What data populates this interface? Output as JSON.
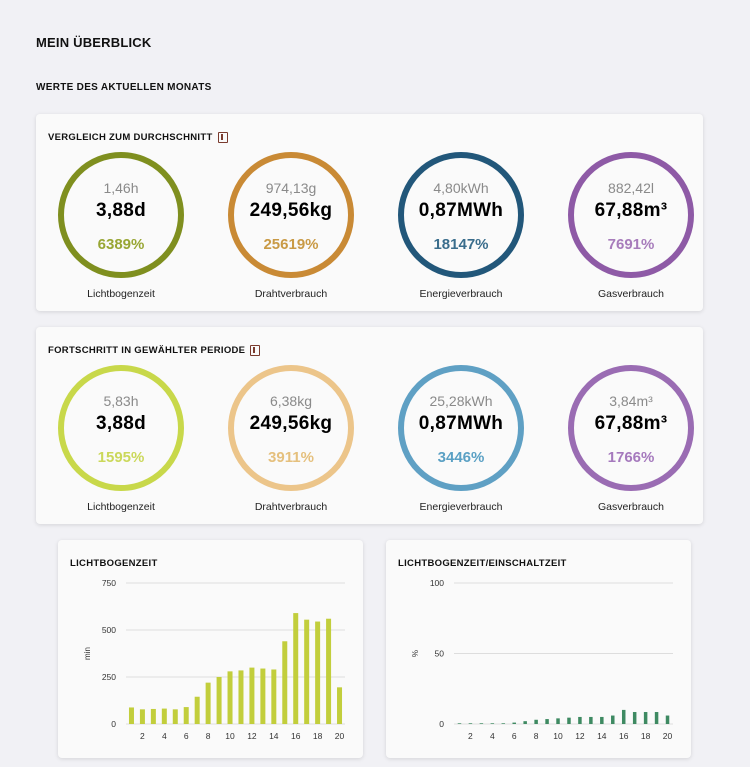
{
  "page": {
    "title": "MEIN ÜBERBLICK",
    "section": "WERTE DES AKTUELLEN MONATS"
  },
  "comparison": {
    "title": "VERGLEICH ZUM DURCHSCHNITT",
    "gauges": [
      {
        "ref": "1,46h",
        "value": "3,88d",
        "percent": "6389%",
        "label": "Lichtbogenzeit",
        "color": "#7f8f1f",
        "pct_color": "#98a634"
      },
      {
        "ref": "974,13g",
        "value": "249,56kg",
        "percent": "25619%",
        "label": "Drahtverbrauch",
        "color": "#c98a35",
        "pct_color": "#c99a45"
      },
      {
        "ref": "4,80kWh",
        "value": "0,87MWh",
        "percent": "18147%",
        "label": "Energieverbrauch",
        "color": "#22577a",
        "pct_color": "#3a6d8c"
      },
      {
        "ref": "882,42l",
        "value": "67,88m³",
        "percent": "7691%",
        "label": "Gasverbrauch",
        "color": "#8e5aa6",
        "pct_color": "#a77cbb"
      }
    ]
  },
  "progress": {
    "title": "FORTSCHRITT IN GEWÄHLTER PERIODE",
    "gauges": [
      {
        "ref": "5,83h",
        "value": "3,88d",
        "percent": "1595%",
        "label": "Lichtbogenzeit",
        "color": "#c8d84a",
        "pct_color": "#cbd85a"
      },
      {
        "ref": "6,38kg",
        "value": "249,56kg",
        "percent": "3911%",
        "label": "Drahtverbrauch",
        "color": "#ecc58a",
        "pct_color": "#e5c07d"
      },
      {
        "ref": "25,28kWh",
        "value": "0,87MWh",
        "percent": "3446%",
        "label": "Energieverbrauch",
        "color": "#5fa0c4",
        "pct_color": "#5aa0c4"
      },
      {
        "ref": "3,84m³",
        "value": "67,88m³",
        "percent": "1766%",
        "label": "Gasverbrauch",
        "color": "#9a6cb3",
        "pct_color": "#a579bd"
      }
    ]
  },
  "chart_data": [
    {
      "type": "bar",
      "title": "LICHTBOGENZEIT",
      "ylabel": "min",
      "ylim": [
        0,
        750
      ],
      "yticks": [
        "0",
        "250",
        "500",
        "750"
      ],
      "xticks": [
        "2",
        "4",
        "6",
        "8",
        "10",
        "12",
        "14",
        "16",
        "18",
        "20"
      ],
      "x": [
        1,
        2,
        3,
        4,
        5,
        6,
        7,
        8,
        9,
        10,
        11,
        12,
        13,
        14,
        15,
        16,
        17,
        18,
        19,
        20
      ],
      "values": [
        88,
        78,
        80,
        82,
        78,
        90,
        145,
        220,
        250,
        280,
        285,
        300,
        295,
        290,
        440,
        590,
        555,
        545,
        560,
        195
      ],
      "color": "#c2ce3c"
    },
    {
      "type": "bar",
      "title": "LICHTBOGENZEIT/EINSCHALTZEIT",
      "ylabel": "%",
      "ylim": [
        0,
        100
      ],
      "yticks": [
        "0",
        "50",
        "100"
      ],
      "xticks": [
        "2",
        "4",
        "6",
        "8",
        "10",
        "12",
        "14",
        "16",
        "18",
        "20"
      ],
      "x": [
        1,
        2,
        3,
        4,
        5,
        6,
        7,
        8,
        9,
        10,
        11,
        12,
        13,
        14,
        15,
        16,
        17,
        18,
        19,
        20
      ],
      "values": [
        0.5,
        0.5,
        0.5,
        0.5,
        0.5,
        1,
        2,
        3,
        3.5,
        4,
        4.5,
        5,
        5,
        5,
        6,
        10,
        8.5,
        8.5,
        8.5,
        6
      ],
      "color": "#3e8a62"
    }
  ]
}
